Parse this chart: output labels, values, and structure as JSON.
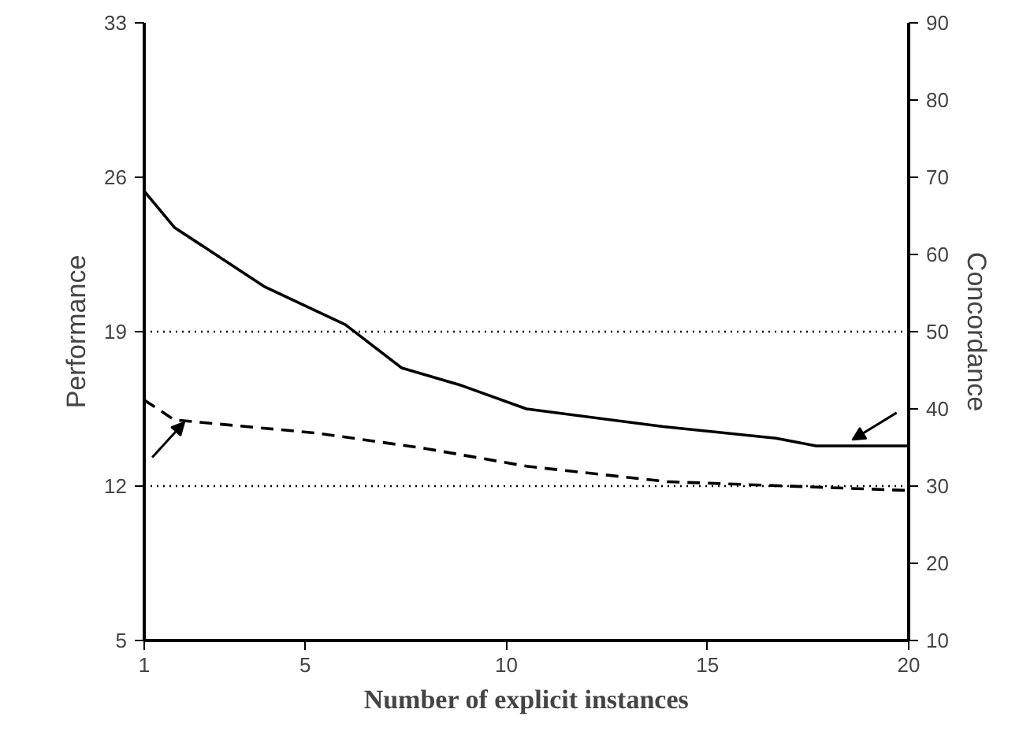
{
  "chart_data": {
    "type": "line",
    "xlabel": "Number of explicit instances",
    "ylabel": "Performance",
    "y2label": "Concordance",
    "xlim": [
      1,
      20
    ],
    "xticks": [
      1,
      5,
      10,
      15,
      20
    ],
    "ylim": [
      5,
      33
    ],
    "yticks": [
      5,
      12,
      19,
      26,
      33
    ],
    "y2lim": [
      10,
      90
    ],
    "y2ticks": [
      10,
      20,
      30,
      40,
      50,
      60,
      70,
      80,
      90
    ],
    "series": [
      {
        "color": "#000000",
        "axis": "y2",
        "line_style": "solid",
        "x": [
          1,
          1.75,
          4,
          6,
          7.4,
          8.9,
          10.5,
          13.9,
          16.7,
          17.7,
          20
        ],
        "values": [
          68.2,
          63.5,
          55.8,
          50.9,
          45.3,
          43.0,
          40.0,
          37.7,
          36.2,
          35.2,
          35.2
        ]
      },
      {
        "color": "#000000",
        "axis": "y",
        "line_style": "dashed",
        "x": [
          1,
          1.75,
          5.3,
          8,
          10.5,
          14,
          20
        ],
        "values": [
          15.9,
          15.0,
          14.4,
          13.7,
          12.9,
          12.2,
          11.8
        ]
      }
    ],
    "ref_lines": [
      {
        "axis": "y",
        "value": 19,
        "line_style": "dotted",
        "color": "#000000"
      },
      {
        "axis": "y",
        "value": 12,
        "line_style": "dotted",
        "color": "#000000"
      }
    ],
    "grid": false,
    "marker": "none"
  }
}
